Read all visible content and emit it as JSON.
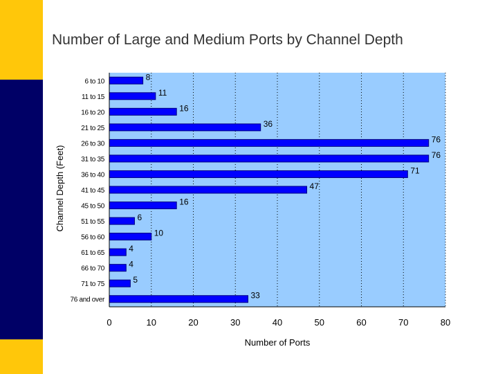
{
  "slide": {
    "title": "Number of Large and Medium Ports by Channel Depth"
  },
  "colors": {
    "accent_yellow": "#ffc70a",
    "navy": "#000066",
    "plot_background": "#99ccff",
    "bar_fill": "#0000ff",
    "bar_edge": "#000080"
  },
  "chart_data": {
    "type": "bar",
    "orientation": "horizontal",
    "categories": [
      "6 to 10",
      "11 to 15",
      "16 to 20",
      "21 to 25",
      "26 to 30",
      "31 to 35",
      "36 to 40",
      "41 to 45",
      "45 to 50",
      "51 to 55",
      "56 to 60",
      "61 to 65",
      "66 to 70",
      "71 to 75",
      "76 and over"
    ],
    "values": [
      8,
      11,
      16,
      36,
      76,
      76,
      71,
      47,
      16,
      6,
      10,
      4,
      4,
      5,
      33
    ],
    "xlabel": "Number of Ports",
    "ylabel": "Channel Depth (Feet)",
    "xlim": [
      0,
      80
    ],
    "xticks": [
      0,
      10,
      20,
      30,
      40,
      50,
      60,
      70,
      80
    ],
    "grid": "vertical dotted",
    "data_labels": true,
    "legend": "none"
  }
}
